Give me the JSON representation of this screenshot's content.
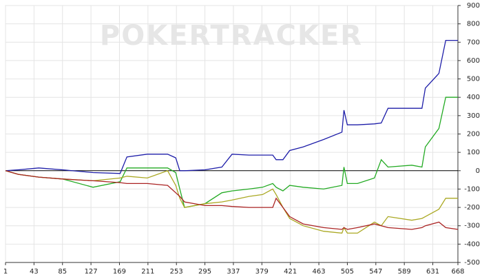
{
  "chart_data": {
    "type": "line",
    "watermark": "POKERTRACKER",
    "x": [
      1,
      20,
      50,
      85,
      130,
      170,
      180,
      210,
      240,
      252,
      258,
      265,
      295,
      320,
      335,
      360,
      380,
      395,
      400,
      410,
      420,
      440,
      470,
      497,
      500,
      505,
      520,
      545,
      555,
      565,
      600,
      615,
      620,
      640,
      650,
      668
    ],
    "series": [
      {
        "color": "#1c1ca8",
        "values": [
          0,
          5,
          15,
          5,
          -10,
          -15,
          75,
          90,
          90,
          70,
          0,
          0,
          5,
          20,
          90,
          85,
          85,
          85,
          60,
          60,
          110,
          130,
          170,
          210,
          330,
          250,
          250,
          255,
          260,
          340,
          340,
          340,
          450,
          530,
          710,
          710
        ]
      },
      {
        "color": "#22aa22",
        "values": [
          0,
          -20,
          -35,
          -45,
          -90,
          -60,
          15,
          15,
          15,
          -10,
          -100,
          -200,
          -180,
          -120,
          -110,
          -100,
          -90,
          -70,
          -90,
          -110,
          -80,
          -90,
          -100,
          -80,
          20,
          -70,
          -70,
          -40,
          60,
          20,
          30,
          20,
          130,
          230,
          400,
          400
        ]
      },
      {
        "color": "#aaa822",
        "values": [
          0,
          -20,
          -35,
          -45,
          -55,
          -40,
          -30,
          -40,
          0,
          -80,
          -150,
          -200,
          -180,
          -170,
          -160,
          -140,
          -130,
          -100,
          -130,
          -200,
          -260,
          -300,
          -330,
          -340,
          -310,
          -340,
          -340,
          -280,
          -300,
          -250,
          -270,
          -260,
          -250,
          -210,
          -150,
          -150
        ]
      },
      {
        "color": "#aa2222",
        "values": [
          0,
          -20,
          -35,
          -45,
          -55,
          -65,
          -70,
          -70,
          -80,
          -120,
          -140,
          -170,
          -190,
          -190,
          -195,
          -200,
          -200,
          -200,
          -150,
          -200,
          -250,
          -290,
          -310,
          -320,
          -310,
          -320,
          -310,
          -290,
          -300,
          -310,
          -320,
          -310,
          -300,
          -280,
          -310,
          -320
        ]
      }
    ],
    "xlim": [
      1,
      668
    ],
    "xticks": [
      1,
      43,
      85,
      127,
      169,
      211,
      253,
      295,
      337,
      379,
      421,
      463,
      505,
      547,
      589,
      631,
      668
    ],
    "ylim": [
      -500,
      900
    ],
    "yticks": [
      -500,
      -400,
      -300,
      -200,
      -100,
      0,
      100,
      200,
      300,
      400,
      500,
      600,
      700,
      800,
      900
    ],
    "grid": true,
    "zero_line": true
  }
}
